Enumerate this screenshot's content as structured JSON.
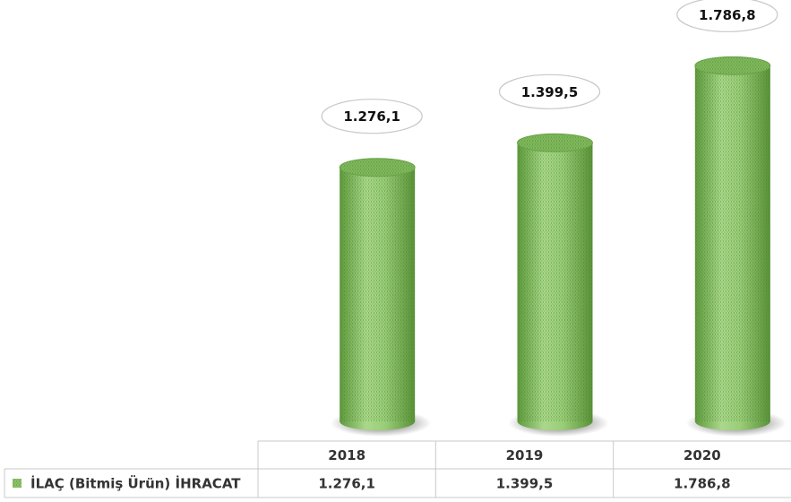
{
  "chart_data": {
    "type": "cylinder",
    "categories": [
      "2018",
      "2019",
      "2020"
    ],
    "series": [
      {
        "name": "İLAÇ (Bitmiş Ürün) İHRACAT",
        "color": "#8dc26a",
        "values": [
          1276.1,
          1399.5,
          1786.8
        ],
        "value_labels": [
          "1.276,1",
          "1.399,5",
          "1.786,8"
        ]
      }
    ],
    "ylim": [
      0,
      2000
    ]
  }
}
